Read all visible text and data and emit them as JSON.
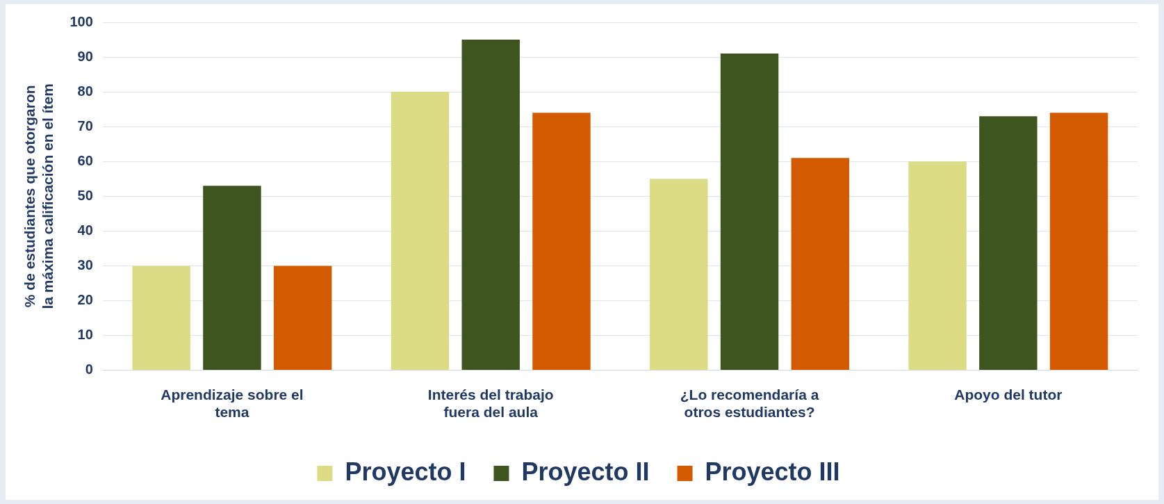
{
  "chart_data": {
    "type": "bar",
    "ylabel": "% de estudiantes que otorgaron la máxima calificación en el ítem",
    "categories": [
      "Aprendizaje sobre el tema",
      "Interés del trabajo fuera del aula",
      "¿Lo recomendaría a otros estudiantes?",
      "Apoyo del tutor"
    ],
    "series": [
      {
        "name": "Proyecto I",
        "color": "#dcdc86",
        "values": [
          30,
          80,
          55,
          60
        ]
      },
      {
        "name": "Proyecto II",
        "color": "#3f5520",
        "values": [
          53,
          95,
          91,
          73
        ]
      },
      {
        "name": "Proyecto III",
        "color": "#d45a00",
        "values": [
          30,
          74,
          61,
          74
        ]
      }
    ],
    "ylim": [
      0,
      100
    ],
    "yticks": [
      0,
      10,
      20,
      30,
      40,
      50,
      60,
      70,
      80,
      90,
      100
    ],
    "grid": "y",
    "legend": "bottom"
  }
}
